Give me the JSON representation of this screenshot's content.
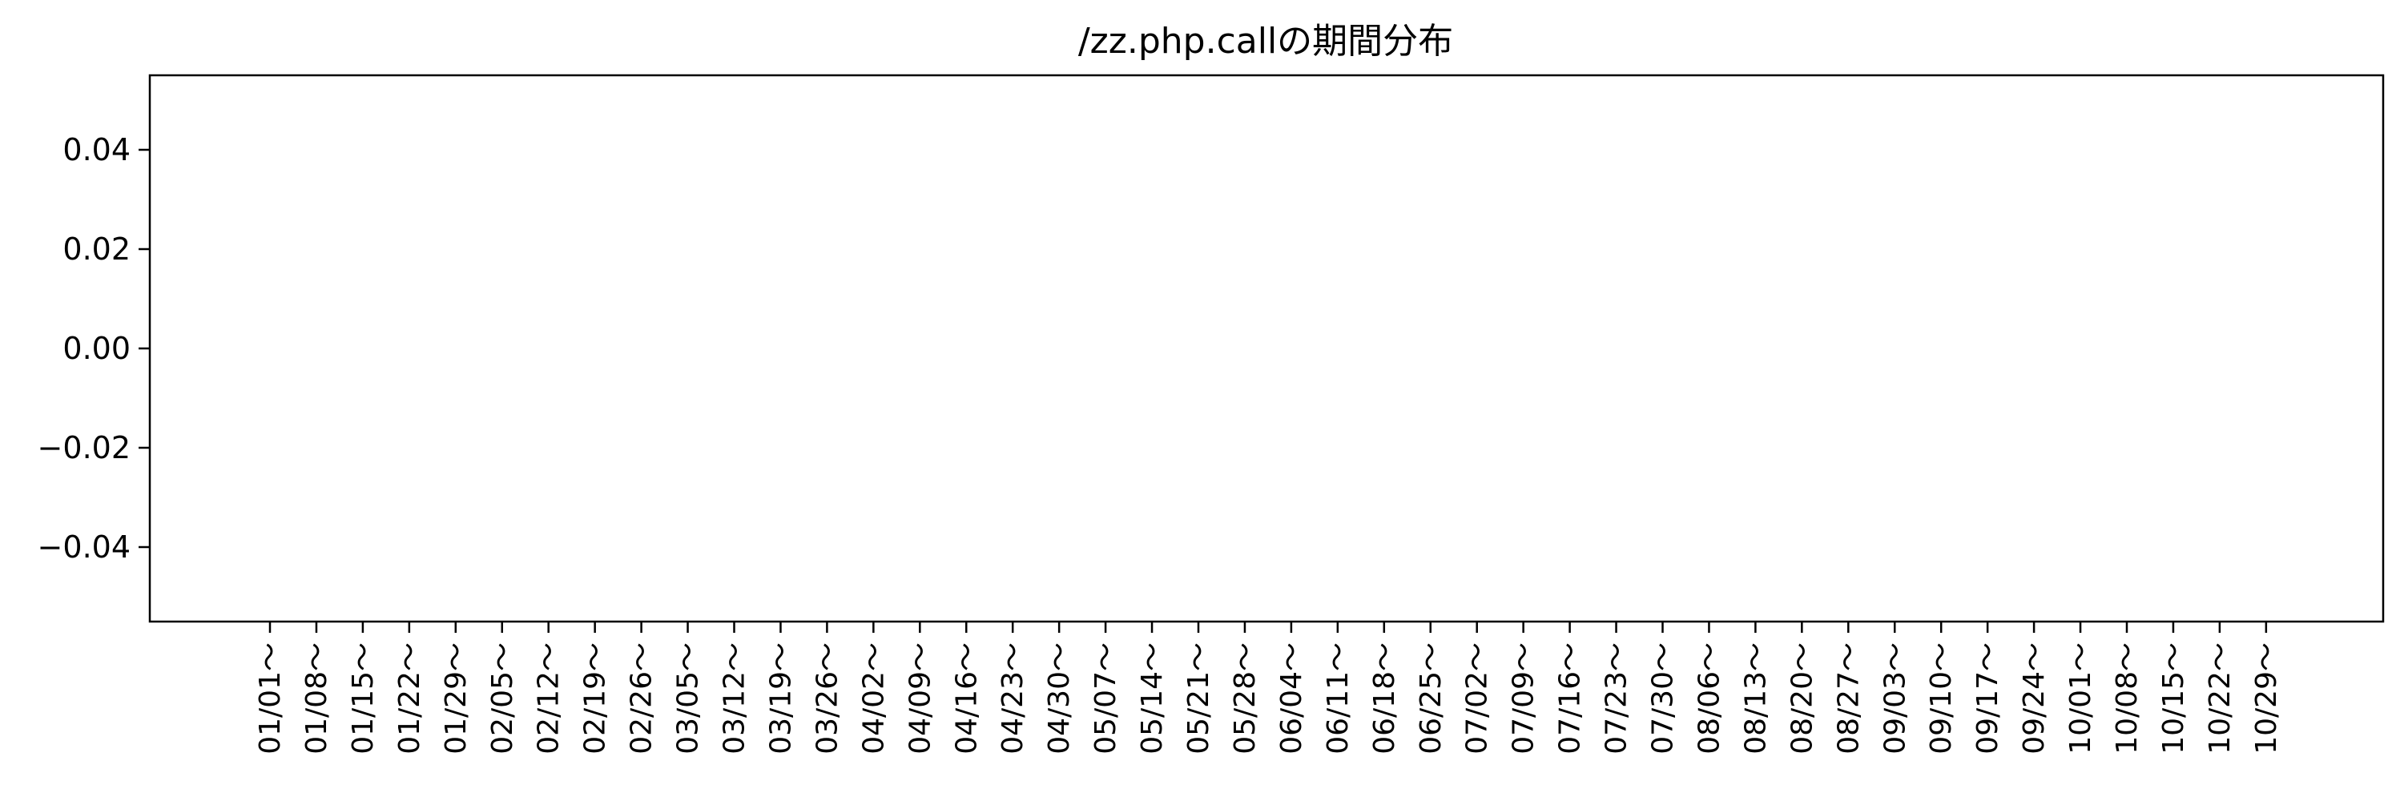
{
  "chart_data": {
    "type": "bar",
    "title": "/zz.php.callの期間分布",
    "xlabel": "",
    "ylabel": "",
    "categories": [
      "01/01～",
      "01/08～",
      "01/15～",
      "01/22～",
      "01/29～",
      "02/05～",
      "02/12～",
      "02/19～",
      "02/26～",
      "03/05～",
      "03/12～",
      "03/19～",
      "03/26～",
      "04/02～",
      "04/09～",
      "04/16～",
      "04/23～",
      "04/30～",
      "05/07～",
      "05/14～",
      "05/21～",
      "05/28～",
      "06/04～",
      "06/11～",
      "06/18～",
      "06/25～",
      "07/02～",
      "07/09～",
      "07/16～",
      "07/23～",
      "07/30～",
      "08/06～",
      "08/13～",
      "08/20～",
      "08/27～",
      "09/03～",
      "09/10～",
      "09/17～",
      "09/24～",
      "10/01～",
      "10/08～",
      "10/15～",
      "10/22～",
      "10/29～"
    ],
    "values": [
      0,
      0,
      0,
      0,
      0,
      0,
      0,
      0,
      0,
      0,
      0,
      0,
      0,
      0,
      0,
      0,
      0,
      0,
      0,
      0,
      0,
      0,
      0,
      0,
      0,
      0,
      0,
      0,
      0,
      0,
      0,
      0,
      0,
      0,
      0,
      0,
      0,
      0,
      0,
      0,
      0,
      0,
      0,
      0
    ],
    "ylim": [
      -0.055,
      0.055
    ],
    "yticks": [
      0.04,
      0.02,
      0.0,
      -0.02,
      -0.04
    ],
    "ytick_labels": [
      "0.04",
      "0.02",
      "0.00",
      "−0.02",
      "−0.04"
    ],
    "grid": false,
    "colors": {
      "axis": "#000000",
      "background": "#ffffff"
    }
  }
}
